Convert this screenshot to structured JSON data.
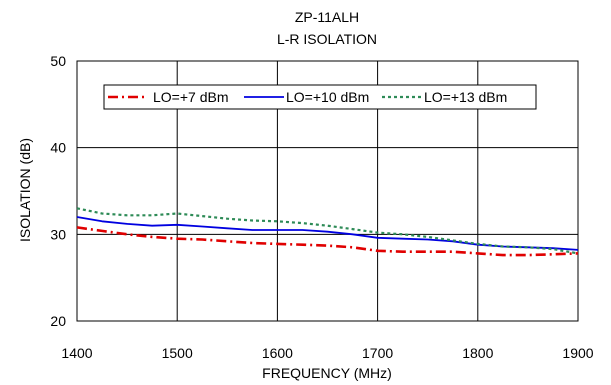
{
  "chart_data": {
    "type": "line",
    "title": "ZP-11ALH",
    "subtitle": "L-R ISOLATION",
    "xlabel": "FREQUENCY (MHz)",
    "ylabel": "ISOLATION (dB)",
    "xlim": [
      1400,
      1900
    ],
    "ylim": [
      20,
      50
    ],
    "xticks": [
      1400,
      1500,
      1600,
      1700,
      1800,
      1900
    ],
    "yticks": [
      20,
      30,
      40,
      50
    ],
    "xtick_labels": [
      "1400",
      "1500",
      "1600",
      "1700",
      "1800",
      "1900"
    ],
    "ytick_labels": [
      "20",
      "30",
      "40",
      "50"
    ],
    "grid": true,
    "legend_position": "top",
    "series": [
      {
        "name": "LO=+7 dBm",
        "color": "#e00000",
        "style": "dash-dot",
        "x": [
          1400,
          1425,
          1450,
          1475,
          1500,
          1525,
          1550,
          1575,
          1600,
          1625,
          1650,
          1675,
          1700,
          1725,
          1750,
          1775,
          1800,
          1825,
          1850,
          1875,
          1900
        ],
        "y": [
          30.8,
          30.4,
          30.0,
          29.7,
          29.5,
          29.4,
          29.2,
          29.0,
          28.9,
          28.8,
          28.7,
          28.5,
          28.1,
          28.0,
          28.0,
          28.0,
          27.8,
          27.6,
          27.6,
          27.7,
          27.8
        ]
      },
      {
        "name": "LO=+10 dBm",
        "color": "#0000e0",
        "style": "solid",
        "x": [
          1400,
          1425,
          1450,
          1475,
          1500,
          1525,
          1550,
          1575,
          1600,
          1625,
          1650,
          1675,
          1700,
          1725,
          1750,
          1775,
          1800,
          1825,
          1850,
          1875,
          1900
        ],
        "y": [
          32.0,
          31.5,
          31.2,
          31.0,
          31.1,
          30.9,
          30.7,
          30.5,
          30.5,
          30.5,
          30.3,
          30.0,
          29.6,
          29.5,
          29.4,
          29.2,
          28.8,
          28.6,
          28.5,
          28.4,
          28.2
        ]
      },
      {
        "name": "LO=+13 dBm",
        "color": "#2e8b57",
        "style": "dotted",
        "x": [
          1400,
          1425,
          1450,
          1475,
          1500,
          1525,
          1550,
          1575,
          1600,
          1625,
          1650,
          1675,
          1700,
          1725,
          1750,
          1775,
          1800,
          1825,
          1850,
          1875,
          1900
        ],
        "y": [
          33.0,
          32.4,
          32.2,
          32.2,
          32.4,
          32.1,
          31.8,
          31.6,
          31.5,
          31.3,
          31.0,
          30.6,
          30.2,
          30.0,
          29.7,
          29.3,
          28.9,
          28.6,
          28.5,
          28.3,
          27.8
        ]
      }
    ]
  }
}
